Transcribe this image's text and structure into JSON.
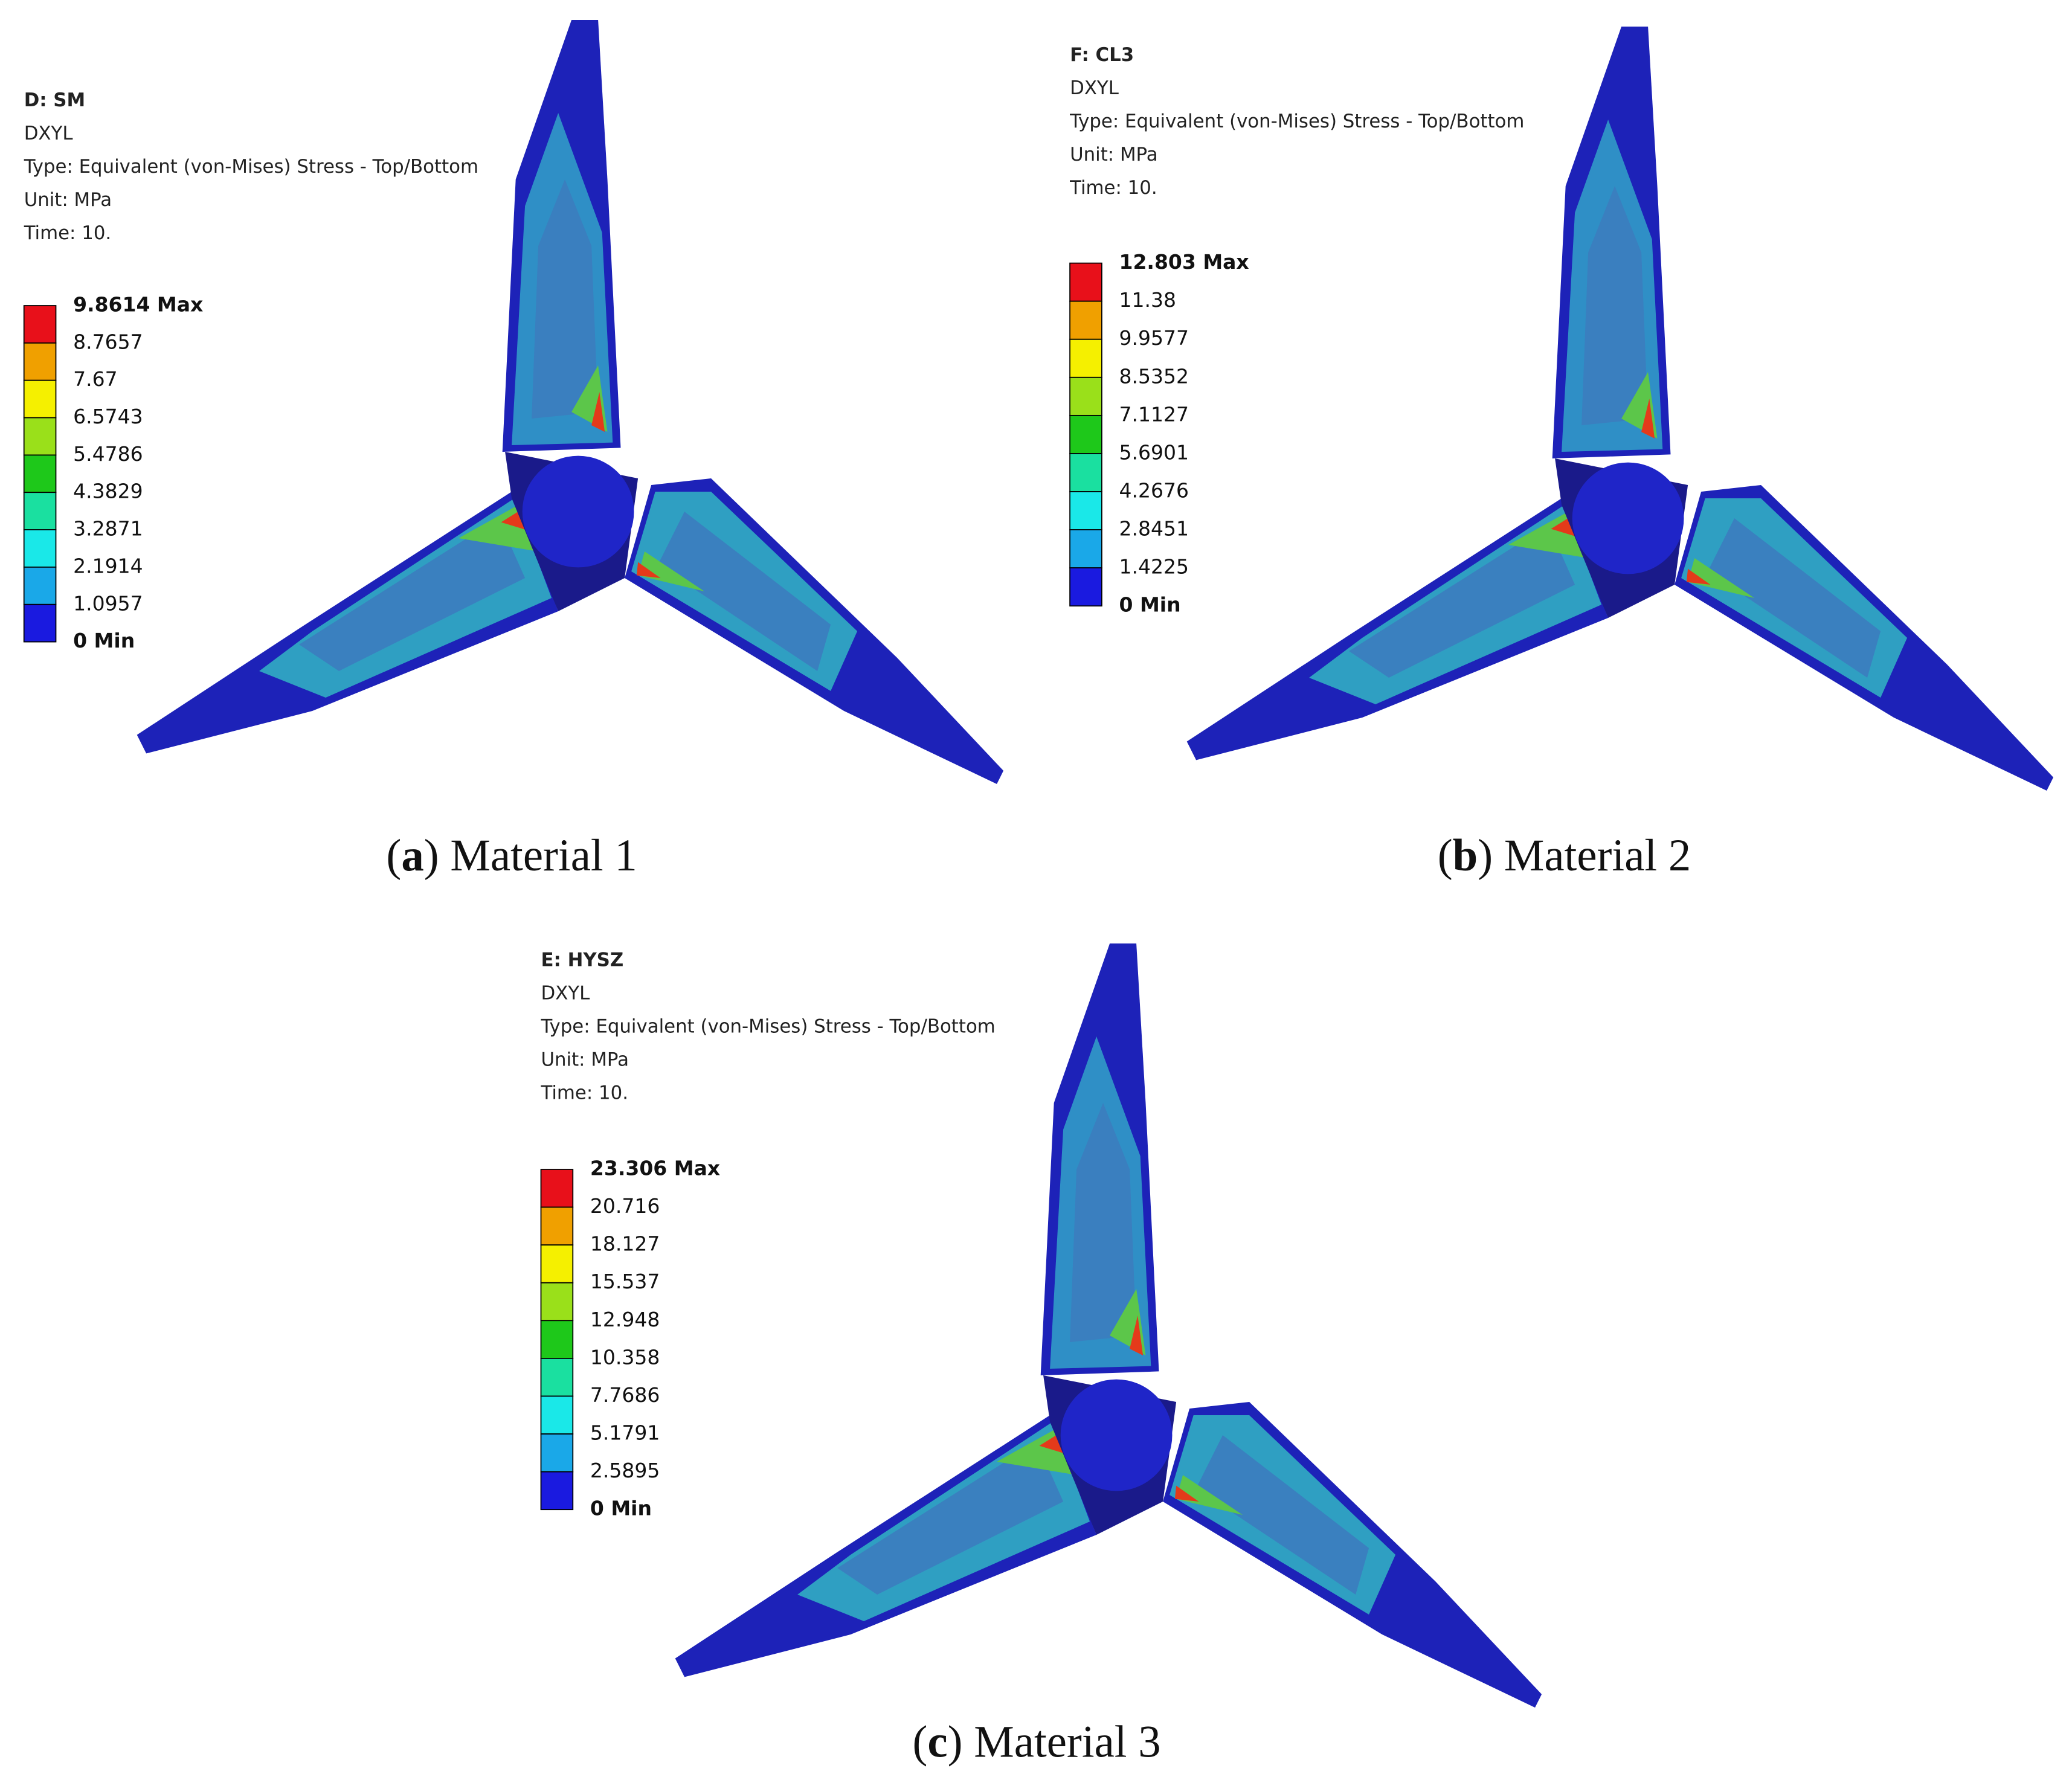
{
  "panels": [
    {
      "title": "D: SM",
      "lines": [
        "DXYL",
        "Type: Equivalent (von-Mises) Stress - Top/Bottom",
        "Unit: MPa",
        "Time: 10."
      ],
      "legend": [
        "9.8614 Max",
        "8.7657",
        "7.67",
        "6.5743",
        "5.4786",
        "4.3829",
        "3.2871",
        "2.1914",
        "1.0957",
        "0 Min"
      ],
      "caption": [
        "(",
        "a",
        ") Material 1"
      ]
    },
    {
      "title": "F: CL3",
      "lines": [
        "DXYL",
        "Type: Equivalent (von-Mises) Stress - Top/Bottom",
        "Unit: MPa",
        "Time: 10."
      ],
      "legend": [
        "12.803 Max",
        "11.38",
        "9.9577",
        "8.5352",
        "7.1127",
        "5.6901",
        "4.2676",
        "2.8451",
        "1.4225",
        "0 Min"
      ],
      "caption": [
        "(",
        "b",
        ") Material 2"
      ]
    },
    {
      "title": "E: HYSZ",
      "lines": [
        "DXYL",
        "Type: Equivalent (von-Mises) Stress - Top/Bottom",
        "Unit: MPa",
        "Time: 10."
      ],
      "legend": [
        "23.306 Max",
        "20.716",
        "18.127",
        "15.537",
        "12.948",
        "10.358",
        "7.7686",
        "5.1791",
        "2.5895",
        "0 Min"
      ],
      "caption": [
        "(",
        "c",
        ") Material 3"
      ]
    }
  ]
}
